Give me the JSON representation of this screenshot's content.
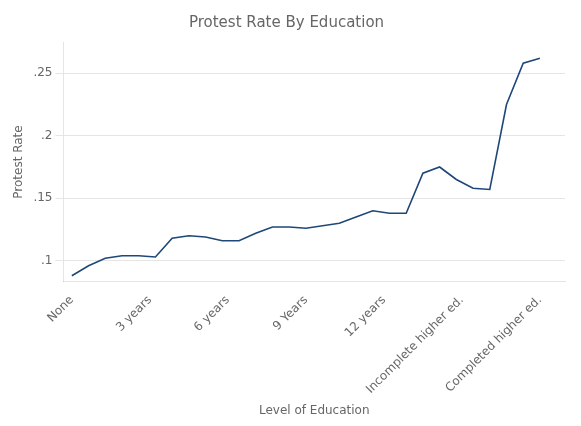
{
  "chart_data": {
    "type": "line",
    "title": "Protest Rate By Education",
    "x_label": "Level of Education",
    "y_label": "Protest Rate",
    "x": [
      0,
      1,
      2,
      3,
      4,
      5,
      6,
      7,
      8,
      9,
      10,
      11,
      12,
      13,
      14,
      15,
      16,
      17,
      18,
      19,
      20,
      21,
      22,
      23,
      24,
      25,
      26,
      27,
      28
    ],
    "values": [
      0.088,
      0.096,
      0.102,
      0.104,
      0.104,
      0.103,
      0.118,
      0.12,
      0.119,
      0.116,
      0.116,
      0.122,
      0.127,
      0.127,
      0.126,
      0.128,
      0.13,
      0.135,
      0.14,
      0.138,
      0.138,
      0.17,
      0.175,
      0.165,
      0.158,
      0.157,
      0.225,
      0.258,
      0.262
    ],
    "color": "#1f4778",
    "xlim": [
      -0.5,
      29.5
    ],
    "xticks": [
      {
        "value": 0,
        "label": "None"
      },
      {
        "value": 4.67,
        "label": "3 years"
      },
      {
        "value": 9.33,
        "label": "6 years"
      },
      {
        "value": 14,
        "label": "9 Years"
      },
      {
        "value": 18.67,
        "label": "12 years"
      },
      {
        "value": 23.33,
        "label": "Incomplete higher ed."
      },
      {
        "value": 28,
        "label": "Completed higher ed."
      }
    ],
    "ylim": [
      0.083,
      0.275
    ],
    "yticks": [
      {
        "value": 0.1,
        "label": ".1"
      },
      {
        "value": 0.15,
        "label": ".15"
      },
      {
        "value": 0.2,
        "label": ".2"
      },
      {
        "value": 0.25,
        "label": ".25"
      }
    ],
    "grid": "y"
  }
}
